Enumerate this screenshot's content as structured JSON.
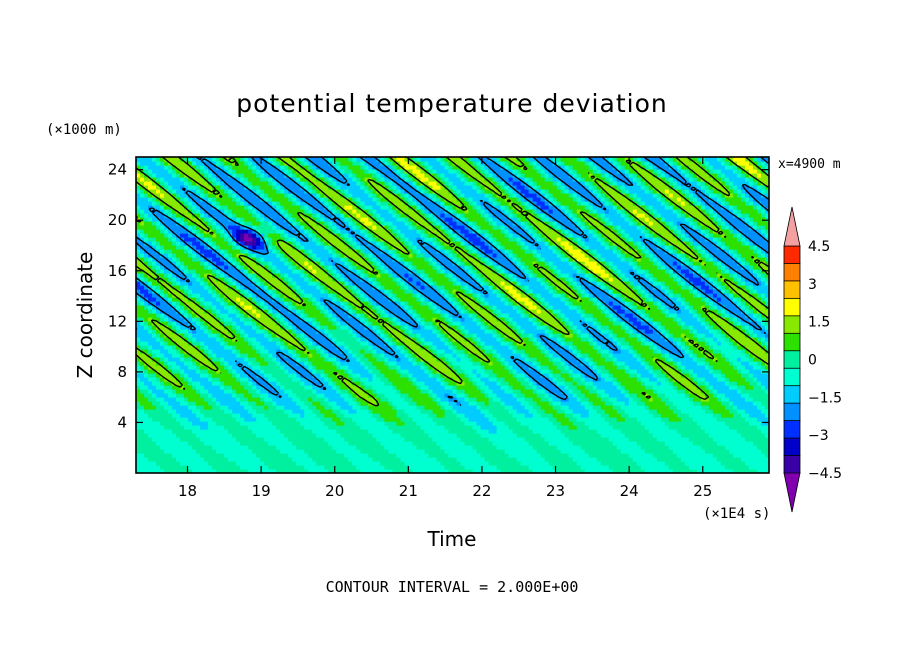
{
  "chart_data": {
    "type": "heatmap",
    "title": "potential temperature deviation",
    "xlabel": "Time",
    "ylabel": "Z coordinate",
    "x_unit_label": "(×1E4 s)",
    "y_unit_label": "(×1000 m)",
    "location_label": "x=4900 m",
    "footer": "CONTOUR INTERVAL = 2.000E+00",
    "xlim": [
      17.3,
      25.9
    ],
    "ylim": [
      0,
      25
    ],
    "x_ticks": [
      18,
      19,
      20,
      21,
      22,
      23,
      24,
      25
    ],
    "x_tick_labels": [
      "18",
      "19",
      "20",
      "21",
      "22",
      "23",
      "24",
      "25"
    ],
    "y_ticks": [
      4,
      8,
      12,
      16,
      20,
      24
    ],
    "y_tick_labels": [
      "4",
      "8",
      "12",
      "16",
      "20",
      "24"
    ],
    "contour_interval": 2.0,
    "colorbar": {
      "levels": [
        -5.25,
        -4.5,
        -3.75,
        -3.0,
        -2.25,
        -1.5,
        -0.75,
        0,
        0.75,
        1.5,
        2.25,
        3.0,
        3.75,
        4.5,
        5.25
      ],
      "tick_values": [
        4.5,
        3,
        1.5,
        0,
        -1.5,
        -3,
        -4.5
      ],
      "tick_labels": [
        "4.5",
        "3",
        "1.5",
        "0",
        "−1.5",
        "−3",
        "−4.5"
      ],
      "colors": [
        "#7f00b2",
        "#3a00a8",
        "#0000c8",
        "#0030ff",
        "#0090ff",
        "#00ccff",
        "#00ffd0",
        "#00f0a0",
        "#2ce000",
        "#88e800",
        "#ffff00",
        "#ffc000",
        "#ff8000",
        "#ff2a00",
        "#ff9898"
      ],
      "over_color": "#f4a0a0",
      "under_color": "#8000b0"
    },
    "field_description": {
      "dominant_values": [
        -1.5,
        1.5
      ],
      "pattern": "diagonal bands sloping downward with time above 8 km; near-zero values below 4 km"
    }
  }
}
